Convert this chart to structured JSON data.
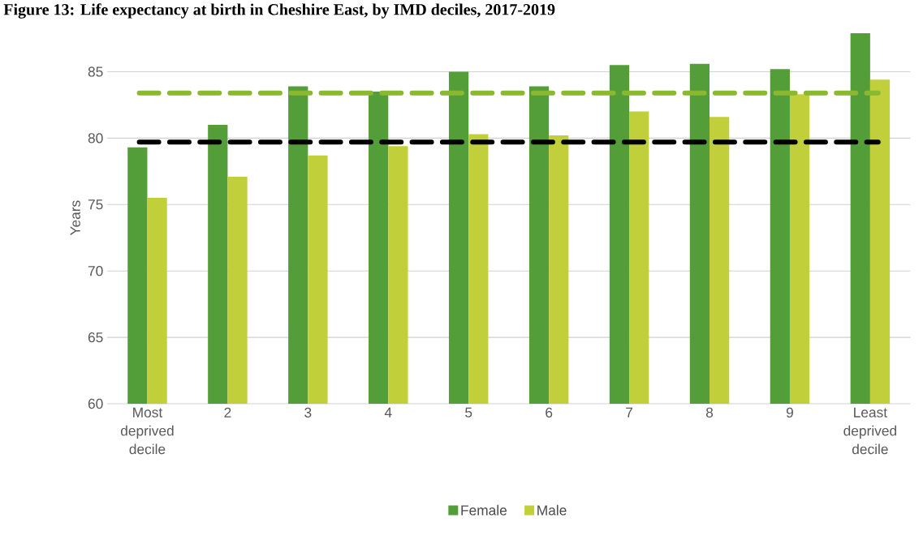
{
  "chart_data": {
    "type": "bar",
    "title": "Figure 13: Life expectancy at birth in Cheshire East, by IMD deciles, 2017-2019",
    "ylabel": "Years",
    "categories": [
      "Most deprived decile",
      "2",
      "3",
      "4",
      "5",
      "6",
      "7",
      "8",
      "9",
      "Least deprived decile"
    ],
    "series": [
      {
        "name": "Female",
        "color": "#549e39",
        "values": [
          79.3,
          81.0,
          83.9,
          83.5,
          85.0,
          83.9,
          85.5,
          85.6,
          85.2,
          87.9
        ]
      },
      {
        "name": "Male",
        "color": "#c0cf3a",
        "values": [
          75.5,
          77.1,
          78.7,
          79.4,
          80.3,
          80.2,
          82.0,
          81.6,
          83.3,
          84.4
        ]
      }
    ],
    "ref_lines": [
      {
        "axis": "y",
        "value": 83.4,
        "color": "#8ab833",
        "line_style": "dashed"
      },
      {
        "axis": "y",
        "value": 79.7,
        "color": "#000000",
        "line_style": "dashed"
      }
    ],
    "ylim": [
      60,
      88
    ],
    "yticks": [
      60,
      65,
      70,
      75,
      80,
      85
    ],
    "grid": "y",
    "legend": "bottom"
  }
}
